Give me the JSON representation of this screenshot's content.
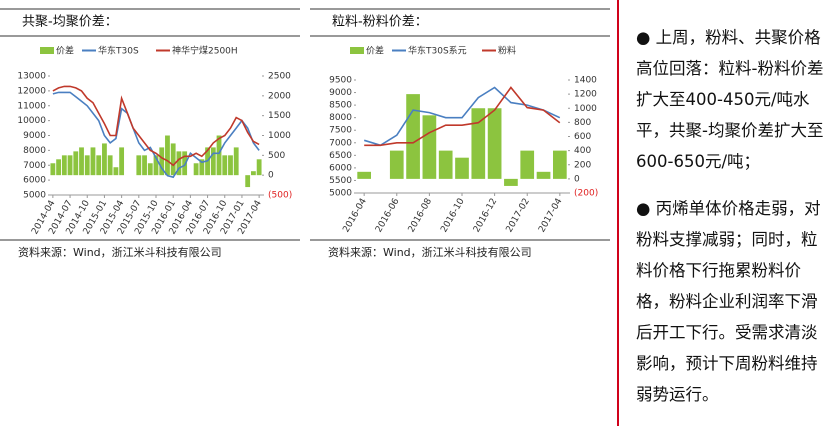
{
  "chart_data": [
    {
      "type": "bar_line",
      "title": "共聚-均聚价差：",
      "source": "资料来源：Wind，浙江米斗科技有限公司",
      "x": [
        "2014-04",
        "2014-05",
        "2014-06",
        "2014-07",
        "2014-08",
        "2014-09",
        "2014-10",
        "2014-11",
        "2014-12",
        "2015-01",
        "2015-02",
        "2015-03",
        "2015-04",
        "2015-05",
        "2015-06",
        "2015-07",
        "2015-08",
        "2015-09",
        "2015-10",
        "2015-11",
        "2015-12",
        "2016-01",
        "2016-02",
        "2016-03",
        "2016-04",
        "2016-05",
        "2016-06",
        "2016-07",
        "2016-08",
        "2016-09",
        "2016-10",
        "2016-11",
        "2016-12",
        "2017-01",
        "2017-02",
        "2017-03",
        "2017-04"
      ],
      "xticks": [
        "2014-04",
        "2014-07",
        "2014-10",
        "2015-01",
        "2015-04",
        "2015-07",
        "2015-10",
        "2016-01",
        "2016-04",
        "2016-07",
        "2016-10",
        "2017-01",
        "2017-04"
      ],
      "series": [
        {
          "name": "价差",
          "kind": "bar",
          "axis": "y2",
          "color": "#8cc43f",
          "values": [
            300,
            400,
            500,
            500,
            600,
            700,
            500,
            700,
            500,
            800,
            500,
            200,
            700,
            0,
            0,
            500,
            500,
            300,
            500,
            700,
            1000,
            800,
            600,
            600,
            0,
            300,
            400,
            700,
            700,
            1000,
            500,
            500,
            700,
            0,
            -300,
            100,
            400
          ]
        },
        {
          "name": "华东T30S",
          "kind": "line",
          "axis": "y",
          "color": "#4a7fc1",
          "values": [
            11800,
            11900,
            11900,
            11900,
            11600,
            11300,
            11000,
            10500,
            10000,
            9000,
            8500,
            8800,
            10800,
            10500,
            9500,
            8500,
            8000,
            8200,
            7500,
            6800,
            6300,
            6200,
            6800,
            7000,
            7800,
            7500,
            7200,
            7300,
            7800,
            7800,
            8500,
            9000,
            9500,
            10000,
            9500,
            8500,
            8000
          ]
        },
        {
          "name": "神华宁煤2500H",
          "kind": "line",
          "axis": "y",
          "color": "#c0392b",
          "values": [
            12000,
            12200,
            12300,
            12300,
            12200,
            12000,
            11500,
            11200,
            10500,
            9800,
            9000,
            9000,
            11500,
            10500,
            9500,
            9000,
            8500,
            8000,
            7800,
            7500,
            7300,
            7000,
            7400,
            7600,
            7600,
            7800,
            7600,
            8000,
            8500,
            8800,
            9000,
            9500,
            10200,
            10000,
            9200,
            8600,
            8400
          ]
        }
      ],
      "ylim": [
        5000,
        13000
      ],
      "yticks": [
        5000,
        6000,
        7000,
        8000,
        9000,
        10000,
        11000,
        12000,
        13000
      ],
      "y2lim": [
        -500,
        2500
      ],
      "y2ticks": [
        {
          "value": -500,
          "label": "(500)"
        },
        0,
        500,
        1000,
        1500,
        2000,
        2500
      ]
    },
    {
      "type": "bar_line",
      "title": "粒料-粉料价差：",
      "source": "资料来源：Wind，浙江米斗科技有限公司",
      "x": [
        "2016-04",
        "2016-05",
        "2016-06",
        "2016-07",
        "2016-08",
        "2016-09",
        "2016-10",
        "2016-11",
        "2016-12",
        "2017-01",
        "2017-02",
        "2017-03",
        "2017-04"
      ],
      "xticks": [
        "2016-04",
        "2016-06",
        "2016-08",
        "2016-10",
        "2016-12",
        "2017-02",
        "2017-04"
      ],
      "series": [
        {
          "name": "价差",
          "kind": "bar",
          "axis": "y2",
          "color": "#8cc43f",
          "values": [
            100,
            0,
            400,
            1200,
            900,
            400,
            300,
            1000,
            1000,
            -100,
            400,
            100,
            400
          ]
        },
        {
          "name": "华东T30S系元",
          "kind": "line",
          "axis": "y",
          "color": "#4a7fc1",
          "values": [
            7100,
            6900,
            7300,
            8300,
            8200,
            8000,
            8000,
            8800,
            9200,
            8600,
            8500,
            8300,
            8000
          ]
        },
        {
          "name": "粉料",
          "kind": "line",
          "axis": "y",
          "color": "#c0392b",
          "values": [
            6900,
            6900,
            7000,
            7000,
            7400,
            7700,
            7700,
            7800,
            8300,
            9200,
            8400,
            8300,
            7800
          ]
        }
      ],
      "ylim": [
        5000,
        9500
      ],
      "yticks": [
        5000,
        5500,
        6000,
        6500,
        7000,
        7500,
        8000,
        8500,
        9000,
        9500
      ],
      "y2lim": [
        -200,
        1400
      ],
      "y2ticks": [
        {
          "value": -200,
          "label": "(200)"
        },
        0,
        200,
        400,
        600,
        800,
        1000,
        1200,
        1400
      ]
    }
  ],
  "bullets": [
    "上周，粉料、共聚价格高位回落：粒料-粉料价差扩大至400-450元/吨水平，共聚-均聚价差扩大至600-650元/吨；",
    "丙烯单体价格走弱，对粉料支撑减弱；同时，粒料价格下行拖累粉料价格，粉料企业利润率下滑后开工下行。受需求清淡影响，预计下周粉料维持弱势运行。"
  ]
}
